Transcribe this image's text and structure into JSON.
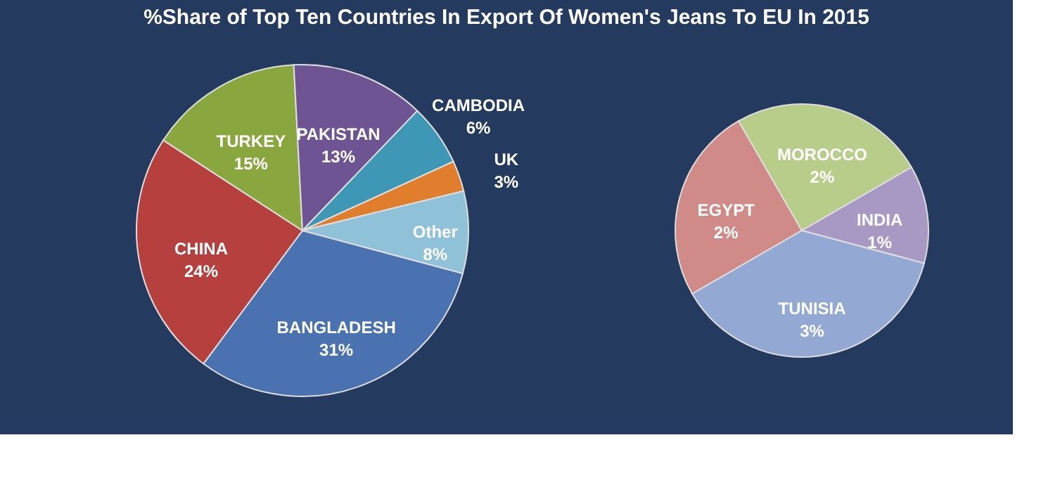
{
  "chart_data": [
    {
      "type": "pie",
      "title": "%Share of Top Ten Countries In Export Of Women's Jeans To EU In 2015",
      "categories": [
        "BANGLADESH",
        "CHINA",
        "TURKEY",
        "PAKISTAN",
        "CAMBODIA",
        "UK",
        "Other"
      ],
      "values": [
        31,
        24,
        15,
        13,
        6,
        3,
        8
      ],
      "value_labels": [
        "31%",
        "24%",
        "15%",
        "13%",
        "6%",
        "3%",
        "8%"
      ],
      "colors": [
        "#4a72b0",
        "#b5403d",
        "#8aa63f",
        "#6f5493",
        "#3d97b5",
        "#e07e2e",
        "#8fc1d8"
      ],
      "legend": false
    },
    {
      "type": "pie",
      "categories": [
        "EGYPT",
        "MOROCCO",
        "INDIA",
        "TUNISIA"
      ],
      "values": [
        2,
        2,
        1,
        3
      ],
      "value_labels": [
        "2%",
        "2%",
        "1%",
        "3%"
      ],
      "colors": [
        "#d08a87",
        "#b8cd8a",
        "#a898c4",
        "#93a9d4"
      ],
      "legend": false
    }
  ]
}
